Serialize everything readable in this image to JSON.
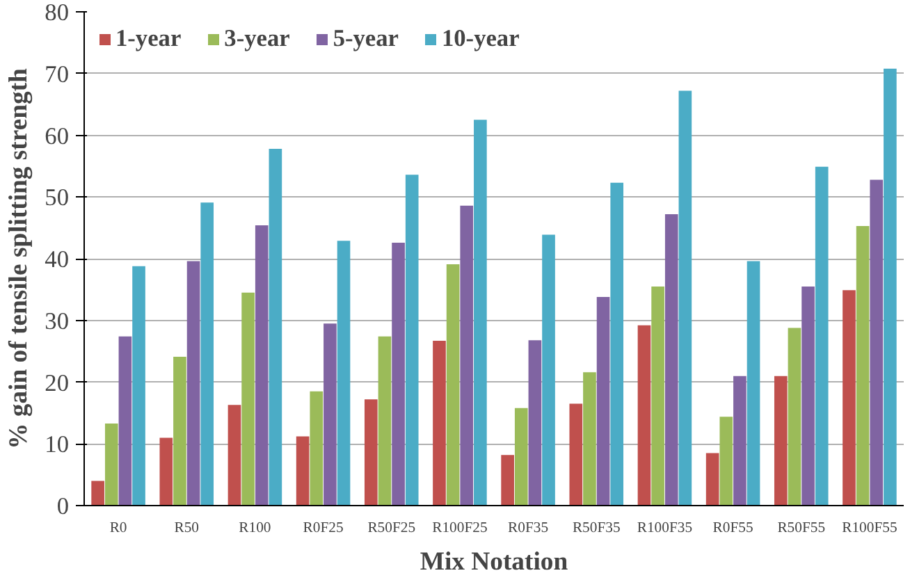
{
  "chart_data": {
    "type": "bar",
    "xlabel": "Mix Notation",
    "ylabel": "% gain of tensile splitting strength",
    "categories": [
      "R0",
      "R50",
      "R100",
      "R0F25",
      "R50F25",
      "R100F25",
      "R0F35",
      "R50F35",
      "R100F35",
      "R0F55",
      "R50F55",
      "R100F55"
    ],
    "series": [
      {
        "name": "1-year",
        "color": "#c0504d",
        "values": [
          4,
          11,
          16.3,
          11.2,
          17.2,
          26.7,
          8.2,
          16.5,
          29.2,
          8.5,
          21.0,
          34.9
        ]
      },
      {
        "name": "3-year",
        "color": "#9bbb59",
        "values": [
          13.3,
          24.1,
          34.5,
          18.5,
          27.4,
          39.1,
          15.8,
          21.6,
          35.5,
          14.4,
          28.8,
          45.3
        ]
      },
      {
        "name": "5-year",
        "color": "#8064a2",
        "values": [
          27.4,
          39.6,
          45.4,
          29.5,
          42.6,
          48.6,
          26.8,
          33.8,
          47.2,
          21.0,
          35.5,
          52.8
        ]
      },
      {
        "name": "10-year",
        "color": "#4bacc6",
        "values": [
          38.8,
          49.1,
          57.8,
          42.9,
          53.6,
          62.5,
          43.9,
          52.3,
          67.2,
          39.6,
          54.9,
          70.8
        ]
      }
    ],
    "ylim": [
      0,
      80
    ],
    "yticks": [
      0,
      10,
      20,
      30,
      40,
      50,
      60,
      70,
      80
    ],
    "grid": "y",
    "legend": "top left"
  }
}
